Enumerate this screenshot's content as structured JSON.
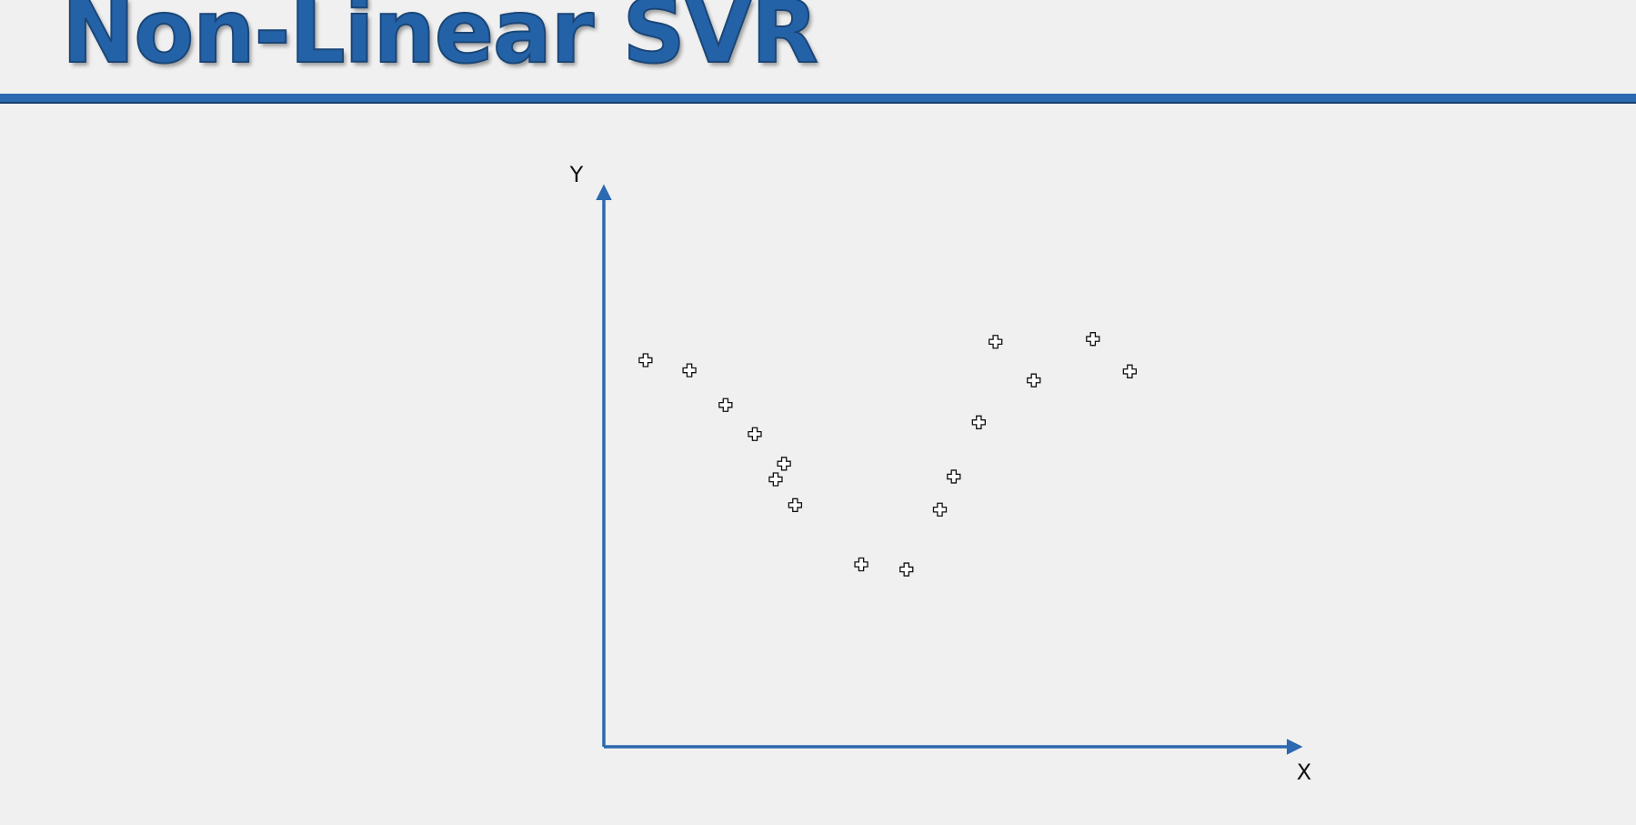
{
  "title": "Non-Linear SVR",
  "colors": {
    "accent": "#2b69b0",
    "title_fill": "#2462a8",
    "title_outline": "#1a4677",
    "background": "#f0f0f0",
    "marker_fill": "#ffffff",
    "marker_stroke": "#111111"
  },
  "chart_data": {
    "type": "scatter",
    "title": "",
    "xlabel": "X",
    "ylabel": "Y",
    "xlim": [
      0,
      100
    ],
    "ylim": [
      0,
      100
    ],
    "grid": false,
    "legend": "none",
    "marker": "plus-icon",
    "series": [
      {
        "x": [
          6,
          12.3,
          17.5,
          21.7,
          25.9,
          24.7,
          27.5,
          37,
          43.5,
          48.3,
          50.3,
          53.9,
          56.3,
          61.8,
          70.3,
          75.6
        ],
        "y": [
          69.1,
          67.3,
          61.1,
          55.9,
          50.6,
          47.8,
          43.2,
          32.6,
          31.7,
          42.4,
          48.3,
          58,
          72.4,
          65.5,
          72.9,
          67.1
        ]
      }
    ]
  }
}
